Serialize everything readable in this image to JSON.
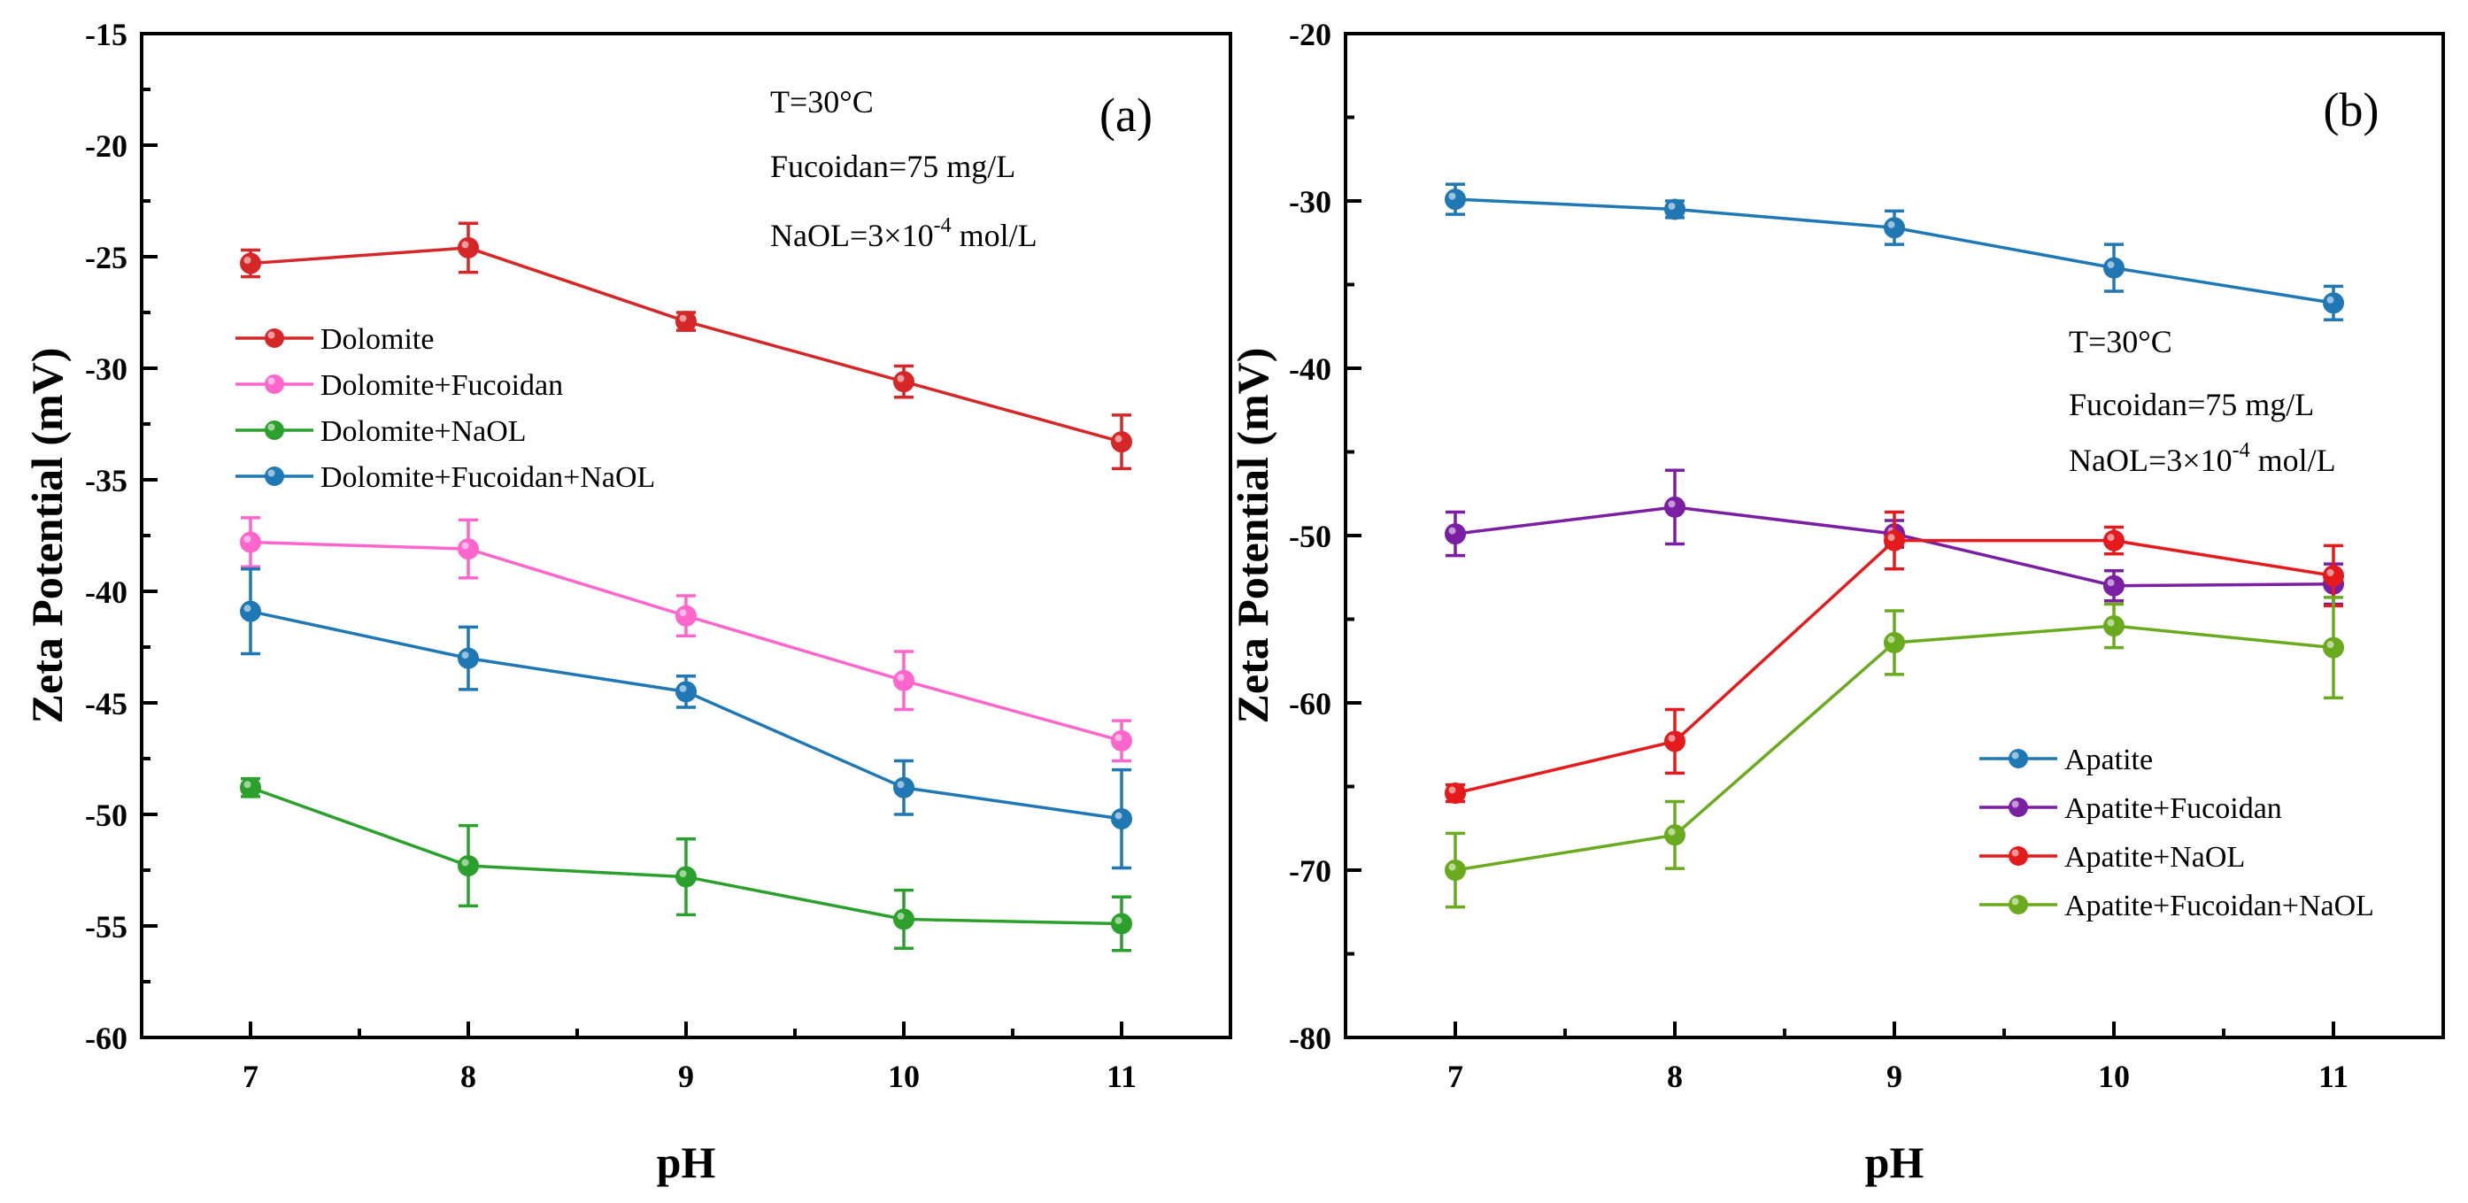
{
  "chart_data": [
    {
      "type": "line",
      "panel_label": "(a)",
      "xlabel": "pH",
      "ylabel": "Zeta Potential (mV)",
      "x": [
        7,
        8,
        9,
        10,
        11
      ],
      "xticks": [
        "7",
        "8",
        "9",
        "10",
        "11"
      ],
      "ylim": [
        -60,
        -15
      ],
      "yticks": [
        "-15",
        "-20",
        "-25",
        "-30",
        "-35",
        "-40",
        "-45",
        "-50",
        "-55",
        "-60"
      ],
      "annotations": [
        "T=30°C",
        "Fucoidan=75 mg/L",
        "NaOL=3×10",
        "-4",
        " mol/L"
      ],
      "legend_position": "center-left",
      "series": [
        {
          "name": "Dolomite",
          "color": "#d62728",
          "values": [
            -25.3,
            -24.6,
            -27.9,
            -30.6,
            -33.3
          ],
          "errors": [
            0.6,
            1.1,
            0.4,
            0.7,
            1.2
          ]
        },
        {
          "name": "Dolomite+Fucoidan",
          "color": "#ff66cc",
          "values": [
            -37.8,
            -38.1,
            -41.1,
            -44.0,
            -46.7
          ],
          "errors": [
            1.1,
            1.3,
            0.9,
            1.3,
            0.9
          ]
        },
        {
          "name": "Dolomite+NaOL",
          "color": "#2ca02c",
          "values": [
            -48.8,
            -52.3,
            -52.8,
            -54.7,
            -54.9
          ],
          "errors": [
            0.4,
            1.8,
            1.7,
            1.3,
            1.2
          ]
        },
        {
          "name": "Dolomite+Fucoidan+NaOL",
          "color": "#1f77b4",
          "values": [
            -40.9,
            -43.0,
            -44.5,
            -48.8,
            -50.2
          ],
          "errors": [
            1.9,
            1.4,
            0.7,
            1.2,
            2.2
          ]
        }
      ]
    },
    {
      "type": "line",
      "panel_label": "(b)",
      "xlabel": "pH",
      "ylabel": "Zeta Potential (mV)",
      "x": [
        7,
        8,
        9,
        10,
        11
      ],
      "xticks": [
        "7",
        "8",
        "9",
        "10",
        "11"
      ],
      "ylim": [
        -80,
        -20
      ],
      "yticks": [
        "-20",
        "-30",
        "-40",
        "-50",
        "-60",
        "-70",
        "-80"
      ],
      "annotations": [
        "T=30°C",
        "Fucoidan=75 mg/L",
        "NaOL=3×10",
        "-4",
        " mol/L"
      ],
      "legend_position": "bottom-right",
      "series": [
        {
          "name": "Apatite",
          "color": "#1f77b4",
          "values": [
            -29.9,
            -30.5,
            -31.6,
            -34.0,
            -36.1
          ],
          "errors": [
            0.9,
            0.5,
            1.0,
            1.4,
            1.0
          ]
        },
        {
          "name": "Apatite+Fucoidan",
          "color": "#7b1fa2",
          "values": [
            -49.9,
            -48.3,
            -49.9,
            -53.0,
            -52.9
          ],
          "errors": [
            1.3,
            2.2,
            0.8,
            0.9,
            1.2
          ]
        },
        {
          "name": "Apatite+NaOL",
          "color": "#e41a1c",
          "values": [
            -65.4,
            -62.3,
            -50.3,
            -50.3,
            -52.4
          ],
          "errors": [
            0.5,
            1.9,
            1.7,
            0.8,
            1.8
          ]
        },
        {
          "name": "Apatite+Fucoidan+NaOL",
          "color": "#6aaa1e",
          "values": [
            -70.0,
            -67.9,
            -56.4,
            -55.4,
            -56.7
          ],
          "errors": [
            2.2,
            2.0,
            1.9,
            1.3,
            3.0
          ]
        }
      ]
    }
  ]
}
